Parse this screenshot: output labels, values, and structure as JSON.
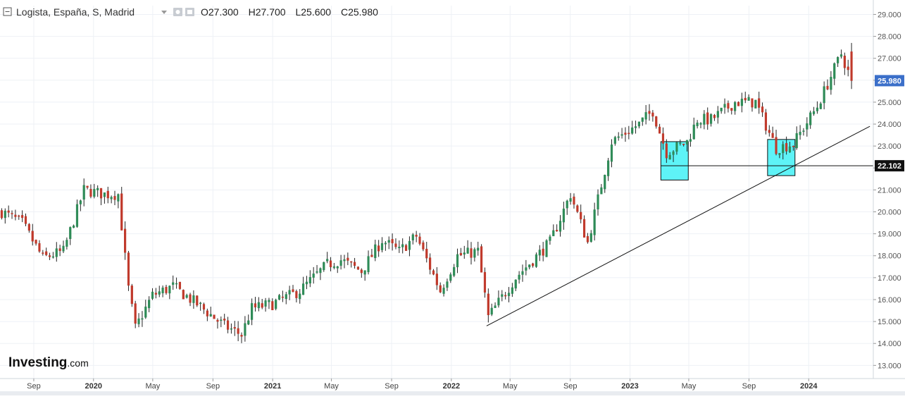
{
  "header": {
    "symbol": "Logista, España, S, Madrid",
    "dropdown_icon": "chevron-down-icon",
    "icons": [
      "settings-icon",
      "eye-icon"
    ],
    "ohlc": [
      {
        "key": "O",
        "value": "27.300"
      },
      {
        "key": "H",
        "value": "27.700"
      },
      {
        "key": "L",
        "value": "25.600"
      },
      {
        "key": "C",
        "value": "25.980"
      }
    ]
  },
  "logo": {
    "main": "Investing",
    "domain": ".com"
  },
  "colors": {
    "up": "#2e8b57",
    "down": "#c0392b",
    "price_tag": "#3b6fc9",
    "level_tag": "#111111",
    "zone_fill": "#5ef3f7",
    "grid": "#eef1f6"
  },
  "chart_data": {
    "type": "candlestick",
    "interval": "S",
    "instrument": "Logista, España, S, Madrid",
    "y_ticks": [
      "13.000",
      "14.000",
      "15.000",
      "16.000",
      "17.000",
      "18.000",
      "19.000",
      "20.000",
      "21.000",
      "22.000",
      "23.000",
      "24.000",
      "25.000",
      "26.000",
      "27.000",
      "28.000",
      "29.000"
    ],
    "ylim": [
      12.4,
      29.4
    ],
    "x_ticks": [
      {
        "label": "Sep",
        "date": "2019-09-01",
        "bold": false
      },
      {
        "label": "2020",
        "date": "2020-01-01",
        "bold": true
      },
      {
        "label": "May",
        "date": "2020-05-01",
        "bold": false
      },
      {
        "label": "Sep",
        "date": "2020-09-01",
        "bold": false
      },
      {
        "label": "2021",
        "date": "2021-01-01",
        "bold": true
      },
      {
        "label": "May",
        "date": "2021-05-01",
        "bold": false
      },
      {
        "label": "Sep",
        "date": "2021-09-01",
        "bold": false
      },
      {
        "label": "2022",
        "date": "2022-01-01",
        "bold": true
      },
      {
        "label": "May",
        "date": "2022-05-01",
        "bold": false
      },
      {
        "label": "Sep",
        "date": "2022-09-01",
        "bold": false
      },
      {
        "label": "2023",
        "date": "2023-01-01",
        "bold": true
      },
      {
        "label": "May",
        "date": "2023-05-01",
        "bold": false
      },
      {
        "label": "Sep",
        "date": "2023-09-01",
        "bold": false
      },
      {
        "label": "2024",
        "date": "2024-01-01",
        "bold": true
      }
    ],
    "xlim": [
      "2019-06-24",
      "2024-05-12"
    ],
    "last_price": "25.980",
    "horizontal_level": {
      "label": "22.102",
      "value": 22.1,
      "from": "2023-03-05"
    },
    "trendline": {
      "from": {
        "date": "2022-03-14",
        "value": 14.8
      },
      "to": {
        "date": "2024-05-05",
        "value": 23.9
      }
    },
    "zones": [
      {
        "from": "2023-03-05",
        "to": "2023-04-30",
        "low": 21.45,
        "high": 23.2
      },
      {
        "from": "2023-10-09",
        "to": "2023-12-04",
        "low": 21.65,
        "high": 23.3
      }
    ],
    "anchors": [
      [
        "2019-06-24",
        20.0
      ],
      [
        "2019-08-05",
        19.5
      ],
      [
        "2019-09-16",
        17.9
      ],
      [
        "2019-10-28",
        18.2
      ],
      [
        "2019-12-09",
        21.0
      ],
      [
        "2020-01-20",
        20.8
      ],
      [
        "2020-02-17",
        20.8
      ],
      [
        "2020-03-09",
        16.5
      ],
      [
        "2020-03-23",
        14.7
      ],
      [
        "2020-04-27",
        16.2
      ],
      [
        "2020-06-08",
        16.6
      ],
      [
        "2020-07-27",
        15.8
      ],
      [
        "2020-09-21",
        14.8
      ],
      [
        "2020-10-26",
        14.4
      ],
      [
        "2020-11-16",
        15.6
      ],
      [
        "2020-12-28",
        15.8
      ],
      [
        "2021-02-22",
        16.4
      ],
      [
        "2021-04-19",
        17.6
      ],
      [
        "2021-05-17",
        17.8
      ],
      [
        "2021-06-28",
        17.3
      ],
      [
        "2021-08-09",
        18.7
      ],
      [
        "2021-09-13",
        18.2
      ],
      [
        "2021-10-18",
        18.9
      ],
      [
        "2021-12-06",
        16.4
      ],
      [
        "2022-01-10",
        18.0
      ],
      [
        "2022-02-21",
        18.2
      ],
      [
        "2022-03-14",
        15.2
      ],
      [
        "2022-05-09",
        17.0
      ],
      [
        "2022-07-18",
        18.6
      ],
      [
        "2022-08-29",
        20.8
      ],
      [
        "2022-10-03",
        18.6
      ],
      [
        "2022-11-21",
        23.2
      ],
      [
        "2023-01-16",
        24.0
      ],
      [
        "2023-02-13",
        24.6
      ],
      [
        "2023-03-13",
        22.7
      ],
      [
        "2023-04-24",
        23.2
      ],
      [
        "2023-05-15",
        24.2
      ],
      [
        "2023-06-12",
        24.2
      ],
      [
        "2023-07-31",
        25.0
      ],
      [
        "2023-09-11",
        25.0
      ],
      [
        "2023-10-23",
        22.9
      ],
      [
        "2023-11-27",
        23.1
      ],
      [
        "2024-01-15",
        24.8
      ],
      [
        "2024-03-04",
        27.2
      ],
      [
        "2024-03-25",
        25.98
      ]
    ],
    "last_candle": {
      "date": "2024-03-25",
      "open": 27.3,
      "high": 27.7,
      "low": 25.6,
      "close": 25.98
    }
  }
}
